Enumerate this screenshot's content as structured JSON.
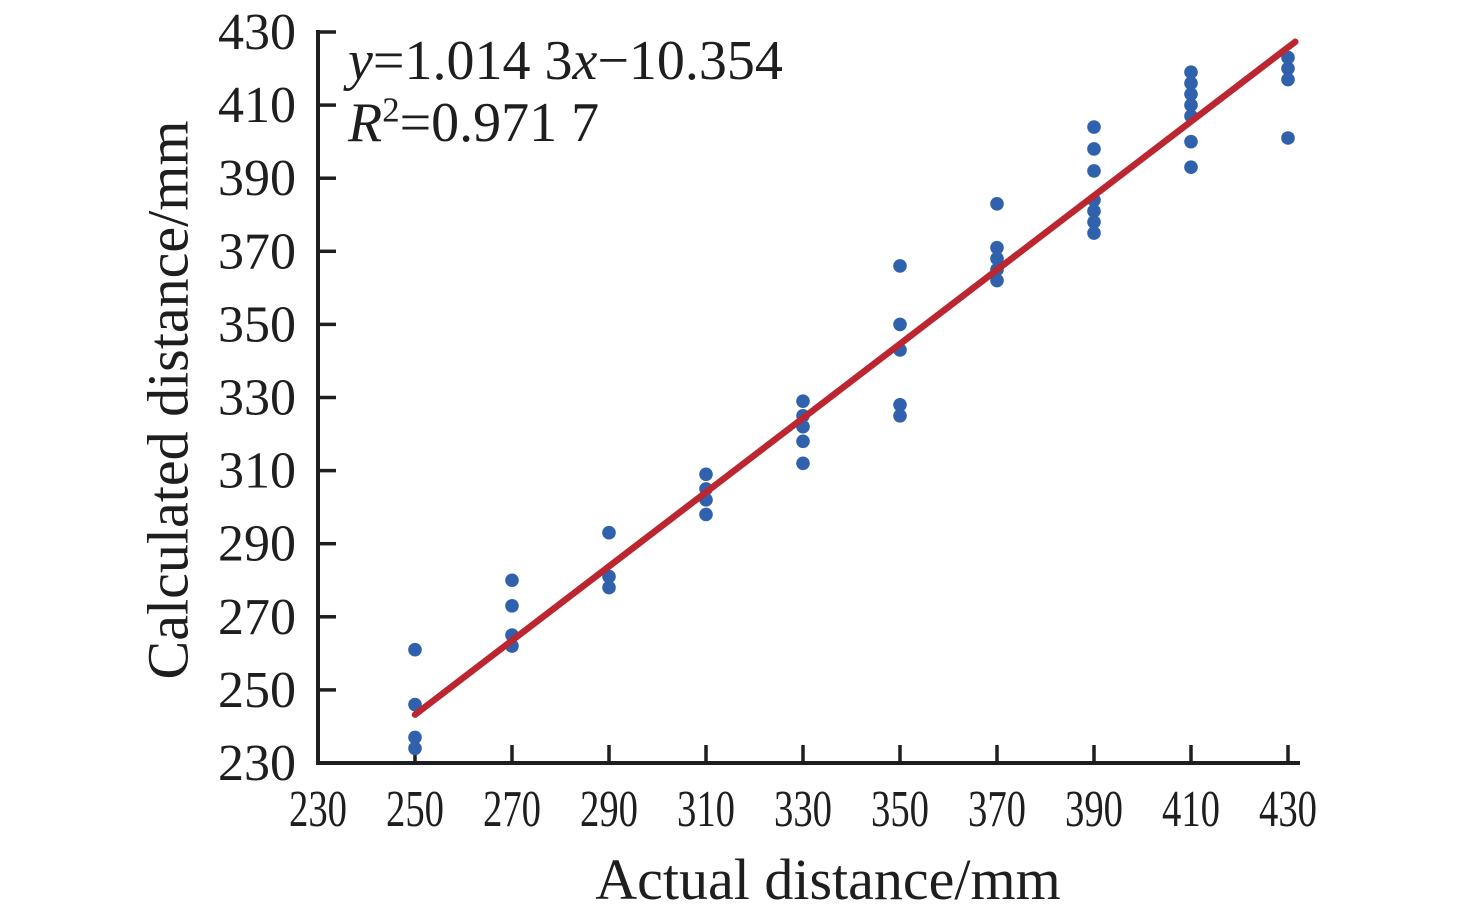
{
  "figure": {
    "xlabel": "Actual distance/mm",
    "ylabel": "Calculated distance/mm",
    "annotation": {
      "line1": {
        "y_var": "y",
        "body": "=1.014 3",
        "x_var": "x",
        "tail": "−10.354"
      },
      "line2": {
        "r_var": "R",
        "sup": "2",
        "tail": "=0.971 7"
      }
    }
  },
  "chart_data": {
    "type": "scatter",
    "title": "",
    "xlabel": "Actual distance/mm",
    "ylabel": "Calculated distance/mm",
    "xlim": [
      230,
      430
    ],
    "ylim": [
      230,
      430
    ],
    "xticks": [
      230,
      250,
      270,
      290,
      310,
      330,
      350,
      370,
      390,
      410,
      430
    ],
    "yticks": [
      230,
      250,
      270,
      290,
      310,
      330,
      350,
      370,
      390,
      410,
      430
    ],
    "grid": false,
    "legend": "none",
    "annotation_lines": [
      "y=1.014 3x−10.354",
      "R²=0.971 7"
    ],
    "axis_color": "#1e1e1e",
    "fit": {
      "slope": 1.0143,
      "intercept": -10.354,
      "r_squared": 0.9717,
      "x_range": [
        250,
        431.5
      ],
      "color": "#bb2630",
      "width": 6.5
    },
    "series": [
      {
        "name": "calculated-vs-actual",
        "marker": "circle",
        "marker_radius": 6.8,
        "color": "#3061ac",
        "points": [
          [
            250,
            261
          ],
          [
            250,
            246
          ],
          [
            250,
            237
          ],
          [
            250,
            234
          ],
          [
            270,
            280
          ],
          [
            270,
            273
          ],
          [
            270,
            265
          ],
          [
            270,
            262
          ],
          [
            290,
            293
          ],
          [
            290,
            281
          ],
          [
            290,
            278
          ],
          [
            310,
            309
          ],
          [
            310,
            305
          ],
          [
            310,
            302
          ],
          [
            310,
            298
          ],
          [
            330,
            329
          ],
          [
            330,
            325
          ],
          [
            330,
            322
          ],
          [
            330,
            318
          ],
          [
            330,
            312
          ],
          [
            350,
            366
          ],
          [
            350,
            350
          ],
          [
            350,
            343
          ],
          [
            350,
            328
          ],
          [
            350,
            325
          ],
          [
            370,
            383
          ],
          [
            370,
            371
          ],
          [
            370,
            368
          ],
          [
            370,
            365
          ],
          [
            370,
            362
          ],
          [
            390,
            404
          ],
          [
            390,
            398
          ],
          [
            390,
            392
          ],
          [
            390,
            384
          ],
          [
            390,
            381
          ],
          [
            390,
            378
          ],
          [
            390,
            375
          ],
          [
            410,
            419
          ],
          [
            410,
            416
          ],
          [
            410,
            413
          ],
          [
            410,
            410
          ],
          [
            410,
            407
          ],
          [
            410,
            400
          ],
          [
            410,
            393
          ],
          [
            430,
            423
          ],
          [
            430,
            420
          ],
          [
            430,
            417
          ],
          [
            430,
            401
          ]
        ]
      }
    ]
  }
}
